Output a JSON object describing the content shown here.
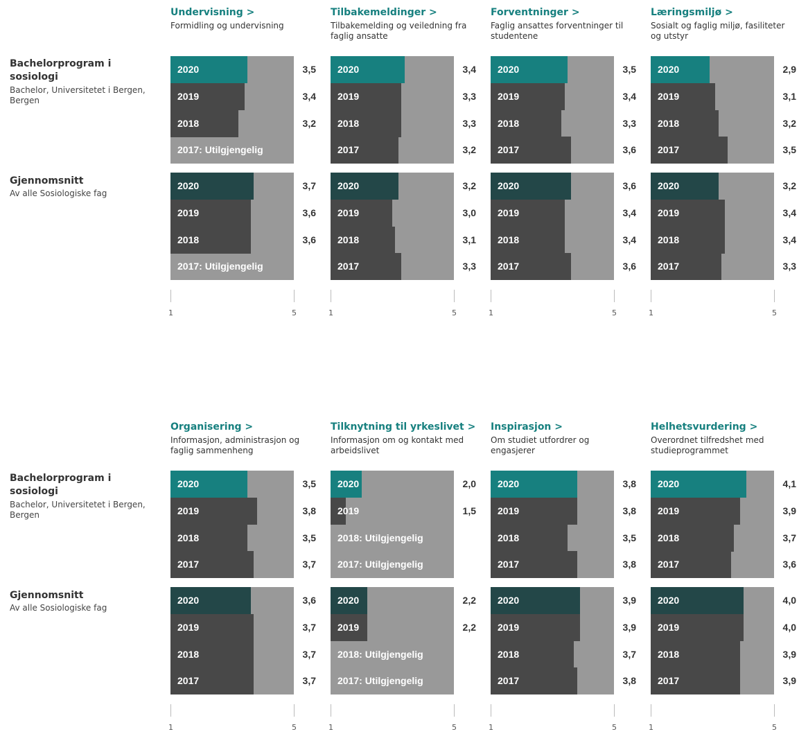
{
  "groups": [
    {
      "name": "Bachelorprogram i sosiologi",
      "description": "Bachelor, Universitetet i Bergen, Bergen"
    },
    {
      "name": "Gjennomsnitt",
      "description": "Av alle Sosiologiske fag"
    }
  ],
  "chart_data": [
    {
      "type": "bar",
      "title": "Undervisning >",
      "subtitle": "Formidling og undervisning",
      "xlim": [
        1,
        5
      ],
      "xticks": [
        1,
        5
      ],
      "background": "#999999",
      "series": [
        {
          "categories": [
            "2020",
            "2019",
            "2018",
            "2017: Utilgjengelig"
          ],
          "values": [
            3.5,
            3.4,
            3.2,
            null
          ],
          "value_labels": [
            "3,5",
            "3,4",
            "3,2",
            null
          ],
          "colors": [
            "#17807f",
            "#484848",
            "#484848",
            "#484848"
          ]
        },
        {
          "categories": [
            "2020",
            "2019",
            "2018",
            "2017: Utilgjengelig"
          ],
          "values": [
            3.7,
            3.6,
            3.6,
            null
          ],
          "value_labels": [
            "3,7",
            "3,6",
            "3,6",
            null
          ],
          "colors": [
            "#234748",
            "#484848",
            "#484848",
            "#484848"
          ]
        }
      ]
    },
    {
      "type": "bar",
      "title": "Tilbakemeldinger >",
      "subtitle": "Tilbakemelding og veiledning fra faglig ansatte",
      "xlim": [
        1,
        5
      ],
      "xticks": [
        1,
        5
      ],
      "background": "#999999",
      "series": [
        {
          "categories": [
            "2020",
            "2019",
            "2018",
            "2017"
          ],
          "values": [
            3.4,
            3.3,
            3.3,
            3.2
          ],
          "value_labels": [
            "3,4",
            "3,3",
            "3,3",
            "3,2"
          ],
          "colors": [
            "#17807f",
            "#484848",
            "#484848",
            "#484848"
          ]
        },
        {
          "categories": [
            "2020",
            "2019",
            "2018",
            "2017"
          ],
          "values": [
            3.2,
            3.0,
            3.1,
            3.3
          ],
          "value_labels": [
            "3,2",
            "3,0",
            "3,1",
            "3,3"
          ],
          "colors": [
            "#234748",
            "#484848",
            "#484848",
            "#484848"
          ]
        }
      ]
    },
    {
      "type": "bar",
      "title": "Forventninger >",
      "subtitle": "Faglig ansattes forventninger til studentene",
      "xlim": [
        1,
        5
      ],
      "xticks": [
        1,
        5
      ],
      "background": "#999999",
      "series": [
        {
          "categories": [
            "2020",
            "2019",
            "2018",
            "2017"
          ],
          "values": [
            3.5,
            3.4,
            3.3,
            3.6
          ],
          "value_labels": [
            "3,5",
            "3,4",
            "3,3",
            "3,6"
          ],
          "colors": [
            "#17807f",
            "#484848",
            "#484848",
            "#484848"
          ]
        },
        {
          "categories": [
            "2020",
            "2019",
            "2018",
            "2017"
          ],
          "values": [
            3.6,
            3.4,
            3.4,
            3.6
          ],
          "value_labels": [
            "3,6",
            "3,4",
            "3,4",
            "3,6"
          ],
          "colors": [
            "#234748",
            "#484848",
            "#484848",
            "#484848"
          ]
        }
      ]
    },
    {
      "type": "bar",
      "title": "Læringsmiljø >",
      "subtitle": "Sosialt og faglig miljø, fasiliteter og utstyr",
      "xlim": [
        1,
        5
      ],
      "xticks": [
        1,
        5
      ],
      "background": "#999999",
      "series": [
        {
          "categories": [
            "2020",
            "2019",
            "2018",
            "2017"
          ],
          "values": [
            2.9,
            3.1,
            3.2,
            3.5
          ],
          "value_labels": [
            "2,9",
            "3,1",
            "3,2",
            "3,5"
          ],
          "colors": [
            "#17807f",
            "#484848",
            "#484848",
            "#484848"
          ]
        },
        {
          "categories": [
            "2020",
            "2019",
            "2018",
            "2017"
          ],
          "values": [
            3.2,
            3.4,
            3.4,
            3.3
          ],
          "value_labels": [
            "3,2",
            "3,4",
            "3,4",
            "3,3"
          ],
          "colors": [
            "#234748",
            "#484848",
            "#484848",
            "#484848"
          ]
        }
      ]
    },
    {
      "type": "bar",
      "title": "Organisering >",
      "subtitle": "Informasjon, administrasjon og faglig sammenheng",
      "xlim": [
        1,
        5
      ],
      "xticks": [
        1,
        5
      ],
      "background": "#999999",
      "series": [
        {
          "categories": [
            "2020",
            "2019",
            "2018",
            "2017"
          ],
          "values": [
            3.5,
            3.8,
            3.5,
            3.7
          ],
          "value_labels": [
            "3,5",
            "3,8",
            "3,5",
            "3,7"
          ],
          "colors": [
            "#17807f",
            "#484848",
            "#484848",
            "#484848"
          ]
        },
        {
          "categories": [
            "2020",
            "2019",
            "2018",
            "2017"
          ],
          "values": [
            3.6,
            3.7,
            3.7,
            3.7
          ],
          "value_labels": [
            "3,6",
            "3,7",
            "3,7",
            "3,7"
          ],
          "colors": [
            "#234748",
            "#484848",
            "#484848",
            "#484848"
          ]
        }
      ]
    },
    {
      "type": "bar",
      "title": "Tilknytning til yrkeslivet >",
      "subtitle": "Informasjon om og kontakt med arbeidslivet",
      "xlim": [
        1,
        5
      ],
      "xticks": [
        1,
        5
      ],
      "background": "#999999",
      "series": [
        {
          "categories": [
            "2020",
            "2019",
            "2018: Utilgjengelig",
            "2017: Utilgjengelig"
          ],
          "values": [
            2,
            1.5,
            null,
            null
          ],
          "value_labels": [
            "2,0",
            "1,5",
            null,
            null
          ],
          "colors": [
            "#17807f",
            "#484848",
            "#484848",
            "#484848"
          ]
        },
        {
          "categories": [
            "2020",
            "2019",
            "2018: Utilgjengelig",
            "2017: Utilgjengelig"
          ],
          "values": [
            2.2,
            2.2,
            null,
            null
          ],
          "value_labels": [
            "2,2",
            "2,2",
            null,
            null
          ],
          "colors": [
            "#234748",
            "#484848",
            "#484848",
            "#484848"
          ]
        }
      ]
    },
    {
      "type": "bar",
      "title": "Inspirasjon >",
      "subtitle": "Om studiet utfordrer og engasjerer",
      "xlim": [
        1,
        5
      ],
      "xticks": [
        1,
        5
      ],
      "background": "#999999",
      "series": [
        {
          "categories": [
            "2020",
            "2019",
            "2018",
            "2017"
          ],
          "values": [
            3.8,
            3.8,
            3.5,
            3.8
          ],
          "value_labels": [
            "3,8",
            "3,8",
            "3,5",
            "3,8"
          ],
          "colors": [
            "#17807f",
            "#484848",
            "#484848",
            "#484848"
          ]
        },
        {
          "categories": [
            "2020",
            "2019",
            "2018",
            "2017"
          ],
          "values": [
            3.9,
            3.9,
            3.7,
            3.8
          ],
          "value_labels": [
            "3,9",
            "3,9",
            "3,7",
            "3,8"
          ],
          "colors": [
            "#234748",
            "#484848",
            "#484848",
            "#484848"
          ]
        }
      ]
    },
    {
      "type": "bar",
      "title": "Helhetsvurdering >",
      "subtitle": "Overordnet tilfredshet med studieprogrammet",
      "xlim": [
        1,
        5
      ],
      "xticks": [
        1,
        5
      ],
      "background": "#999999",
      "series": [
        {
          "categories": [
            "2020",
            "2019",
            "2018",
            "2017"
          ],
          "values": [
            4.1,
            3.9,
            3.7,
            3.6
          ],
          "value_labels": [
            "4,1",
            "3,9",
            "3,7",
            "3,6"
          ],
          "colors": [
            "#17807f",
            "#484848",
            "#484848",
            "#484848"
          ]
        },
        {
          "categories": [
            "2020",
            "2019",
            "2018",
            "2017"
          ],
          "values": [
            4.0,
            4.0,
            3.9,
            3.9
          ],
          "value_labels": [
            "4,0",
            "4,0",
            "3,9",
            "3,9"
          ],
          "colors": [
            "#234748",
            "#484848",
            "#484848",
            "#484848"
          ]
        }
      ]
    }
  ]
}
